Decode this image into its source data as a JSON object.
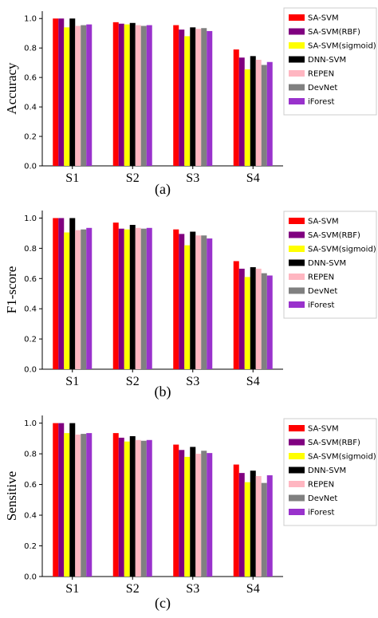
{
  "chart_data": [
    {
      "type": "bar",
      "caption": "(a)",
      "ylabel": "Accuracy",
      "categories": [
        "S1",
        "S2",
        "S3",
        "S4"
      ],
      "yticks": [
        "0.0",
        "0.2",
        "0.4",
        "0.6",
        "0.8",
        "1.0"
      ],
      "ylim": [
        0,
        1.05
      ],
      "series": [
        {
          "name": "SA-SVM",
          "color": "#ff0000",
          "values": [
            1.0,
            0.975,
            0.955,
            0.79
          ]
        },
        {
          "name": "SA-SVM(RBF)",
          "color": "#800080",
          "values": [
            1.0,
            0.965,
            0.925,
            0.735
          ]
        },
        {
          "name": "SA-SVM(sigmoid)",
          "color": "#ffff00",
          "values": [
            0.94,
            0.96,
            0.88,
            0.655
          ]
        },
        {
          "name": "DNN-SVM",
          "color": "#000000",
          "values": [
            1.0,
            0.97,
            0.94,
            0.745
          ]
        },
        {
          "name": "REPEN",
          "color": "#ffb6c1",
          "values": [
            0.95,
            0.955,
            0.93,
            0.72
          ]
        },
        {
          "name": "DevNet",
          "color": "#808080",
          "values": [
            0.955,
            0.95,
            0.935,
            0.685
          ]
        },
        {
          "name": "iForest",
          "color": "#9932cc",
          "values": [
            0.96,
            0.955,
            0.915,
            0.705
          ]
        }
      ]
    },
    {
      "type": "bar",
      "caption": "(b)",
      "ylabel": "F1-score",
      "categories": [
        "S1",
        "S2",
        "S3",
        "S4"
      ],
      "yticks": [
        "0.0",
        "0.2",
        "0.4",
        "0.6",
        "0.8",
        "1.0"
      ],
      "ylim": [
        0,
        1.05
      ],
      "series": [
        {
          "name": "SA-SVM",
          "color": "#ff0000",
          "values": [
            1.0,
            0.97,
            0.925,
            0.715
          ]
        },
        {
          "name": "SA-SVM(RBF)",
          "color": "#800080",
          "values": [
            1.0,
            0.93,
            0.895,
            0.665
          ]
        },
        {
          "name": "SA-SVM(sigmoid)",
          "color": "#ffff00",
          "values": [
            0.905,
            0.925,
            0.82,
            0.61
          ]
        },
        {
          "name": "DNN-SVM",
          "color": "#000000",
          "values": [
            1.0,
            0.955,
            0.91,
            0.675
          ]
        },
        {
          "name": "REPEN",
          "color": "#ffb6c1",
          "values": [
            0.92,
            0.935,
            0.885,
            0.665
          ]
        },
        {
          "name": "DevNet",
          "color": "#808080",
          "values": [
            0.925,
            0.93,
            0.885,
            0.635
          ]
        },
        {
          "name": "iForest",
          "color": "#9932cc",
          "values": [
            0.935,
            0.935,
            0.865,
            0.62
          ]
        }
      ]
    },
    {
      "type": "bar",
      "caption": "(c)",
      "ylabel": "Sensitive",
      "categories": [
        "S1",
        "S2",
        "S3",
        "S4"
      ],
      "yticks": [
        "0.0",
        "0.2",
        "0.4",
        "0.6",
        "0.8",
        "1.0"
      ],
      "ylim": [
        0,
        1.05
      ],
      "series": [
        {
          "name": "SA-SVM",
          "color": "#ff0000",
          "values": [
            1.0,
            0.935,
            0.86,
            0.73
          ]
        },
        {
          "name": "SA-SVM(RBF)",
          "color": "#800080",
          "values": [
            1.0,
            0.905,
            0.825,
            0.675
          ]
        },
        {
          "name": "SA-SVM(sigmoid)",
          "color": "#ffff00",
          "values": [
            0.935,
            0.88,
            0.78,
            0.615
          ]
        },
        {
          "name": "DNN-SVM",
          "color": "#000000",
          "values": [
            1.0,
            0.915,
            0.845,
            0.69
          ]
        },
        {
          "name": "REPEN",
          "color": "#ffb6c1",
          "values": [
            0.925,
            0.89,
            0.8,
            0.655
          ]
        },
        {
          "name": "DevNet",
          "color": "#808080",
          "values": [
            0.93,
            0.885,
            0.82,
            0.61
          ]
        },
        {
          "name": "iForest",
          "color": "#9932cc",
          "values": [
            0.935,
            0.89,
            0.805,
            0.66
          ]
        }
      ]
    }
  ]
}
